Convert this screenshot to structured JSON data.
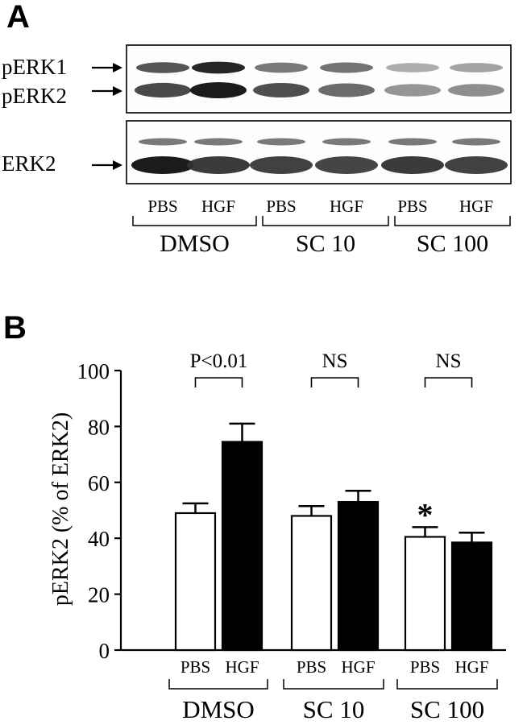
{
  "panel_a": {
    "letter": "A",
    "band_labels": [
      "pERK1",
      "pERK2",
      "ERK2"
    ],
    "lane_labels": [
      "PBS",
      "HGF",
      "PBS",
      "HGF",
      "PBS",
      "HGF"
    ],
    "groups": [
      "DMSO",
      "SC 10",
      "SC 100"
    ],
    "band_intensity": {
      "pERK1": [
        0.72,
        0.95,
        0.55,
        0.58,
        0.3,
        0.35
      ],
      "pERK2": [
        0.78,
        1.0,
        0.75,
        0.62,
        0.42,
        0.45
      ],
      "ERK2": [
        1.0,
        0.85,
        0.82,
        0.8,
        0.85,
        0.82
      ]
    }
  },
  "panel_b": {
    "letter": "B",
    "significance": [
      "P<0.01",
      "NS",
      "NS"
    ],
    "star": "*"
  },
  "chart_data": {
    "type": "bar",
    "ylabel": "pERK2 (% of ERK2)",
    "ylim": [
      0,
      100
    ],
    "yticks": [
      0,
      20,
      40,
      60,
      80,
      100
    ],
    "groups": [
      "DMSO",
      "SC 10",
      "SC 100"
    ],
    "categories": [
      "PBS",
      "HGF",
      "PBS",
      "HGF",
      "PBS",
      "HGF"
    ],
    "series": [
      {
        "values": [
          49,
          74.5,
          48,
          53,
          40.5,
          38.5
        ],
        "errors": [
          3.5,
          6.5,
          3.5,
          4,
          3.5,
          3.5
        ],
        "colors": [
          "#ffffff",
          "#000000",
          "#ffffff",
          "#000000",
          "#ffffff",
          "#000000"
        ]
      }
    ]
  }
}
